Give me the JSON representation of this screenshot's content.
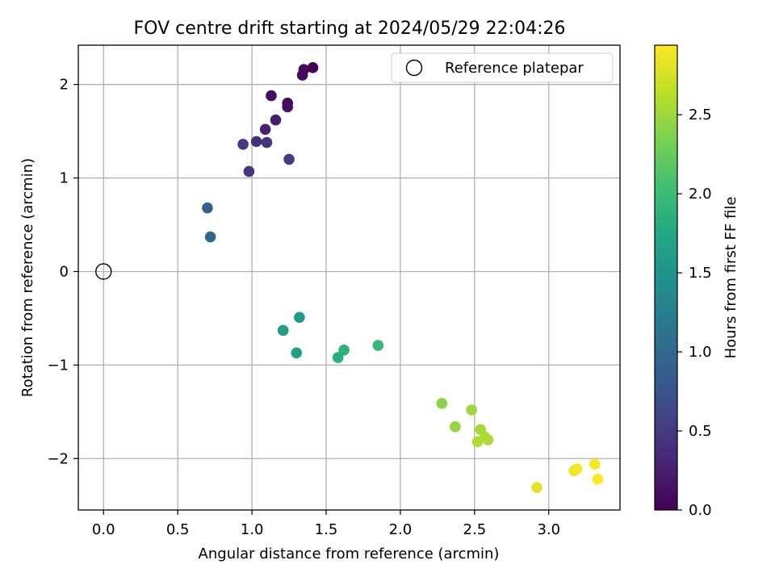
{
  "chart_data": {
    "type": "scatter",
    "title": "FOV centre drift starting at 2024/05/29 22:04:26",
    "xlabel": "Angular distance from reference (arcmin)",
    "ylabel": "Rotation from reference (arcmin)",
    "xlim": [
      -0.17,
      3.48
    ],
    "ylim": [
      -2.55,
      2.42
    ],
    "xticks": [
      0.0,
      0.5,
      1.0,
      1.5,
      2.0,
      2.5,
      3.0
    ],
    "xtick_labels": [
      "0.0",
      "0.5",
      "1.0",
      "1.5",
      "2.0",
      "2.5",
      "3.0"
    ],
    "yticks": [
      -2,
      -1,
      0,
      1,
      2
    ],
    "ytick_labels": [
      "−2",
      "−1",
      "0",
      "1",
      "2"
    ],
    "grid": true,
    "legend": {
      "position": "top-right",
      "entries": [
        "Reference platepar"
      ]
    },
    "reference_point": {
      "x": 0.0,
      "y": 0.0
    },
    "colorbar": {
      "label": "Hours from first FF file",
      "colormap": "viridis",
      "range": [
        0.0,
        2.94
      ],
      "ticks": [
        0.0,
        0.5,
        1.0,
        1.5,
        2.0,
        2.5
      ],
      "tick_labels": [
        "0.0",
        "0.5",
        "1.0",
        "1.5",
        "2.0",
        "2.5"
      ]
    },
    "points": [
      {
        "x": 1.41,
        "y": 2.18,
        "c": 0.02
      },
      {
        "x": 1.35,
        "y": 2.16,
        "c": 0.04
      },
      {
        "x": 1.34,
        "y": 2.1,
        "c": 0.06
      },
      {
        "x": 1.13,
        "y": 1.88,
        "c": 0.1
      },
      {
        "x": 1.24,
        "y": 1.8,
        "c": 0.08
      },
      {
        "x": 1.24,
        "y": 1.76,
        "c": 0.12
      },
      {
        "x": 1.16,
        "y": 1.62,
        "c": 0.22
      },
      {
        "x": 1.09,
        "y": 1.52,
        "c": 0.26
      },
      {
        "x": 1.03,
        "y": 1.39,
        "c": 0.4
      },
      {
        "x": 0.94,
        "y": 1.36,
        "c": 0.48
      },
      {
        "x": 1.1,
        "y": 1.38,
        "c": 0.44
      },
      {
        "x": 1.25,
        "y": 1.2,
        "c": 0.52
      },
      {
        "x": 0.98,
        "y": 1.07,
        "c": 0.46
      },
      {
        "x": 0.7,
        "y": 0.68,
        "c": 0.92
      },
      {
        "x": 0.72,
        "y": 0.37,
        "c": 0.95
      },
      {
        "x": 1.32,
        "y": -0.49,
        "c": 1.6
      },
      {
        "x": 1.21,
        "y": -0.63,
        "c": 1.62
      },
      {
        "x": 1.3,
        "y": -0.87,
        "c": 1.66
      },
      {
        "x": 1.58,
        "y": -0.92,
        "c": 1.84
      },
      {
        "x": 1.62,
        "y": -0.84,
        "c": 1.88
      },
      {
        "x": 1.85,
        "y": -0.79,
        "c": 1.96
      },
      {
        "x": 2.28,
        "y": -1.41,
        "c": 2.42
      },
      {
        "x": 2.48,
        "y": -1.48,
        "c": 2.5
      },
      {
        "x": 2.37,
        "y": -1.66,
        "c": 2.46
      },
      {
        "x": 2.54,
        "y": -1.69,
        "c": 2.54
      },
      {
        "x": 2.57,
        "y": -1.77,
        "c": 2.56
      },
      {
        "x": 2.52,
        "y": -1.82,
        "c": 2.58
      },
      {
        "x": 2.59,
        "y": -1.8,
        "c": 2.57
      },
      {
        "x": 2.92,
        "y": -2.31,
        "c": 2.82
      },
      {
        "x": 3.17,
        "y": -2.13,
        "c": 2.88
      },
      {
        "x": 3.19,
        "y": -2.11,
        "c": 2.89
      },
      {
        "x": 3.31,
        "y": -2.06,
        "c": 2.92
      },
      {
        "x": 3.33,
        "y": -2.22,
        "c": 2.94
      }
    ]
  }
}
